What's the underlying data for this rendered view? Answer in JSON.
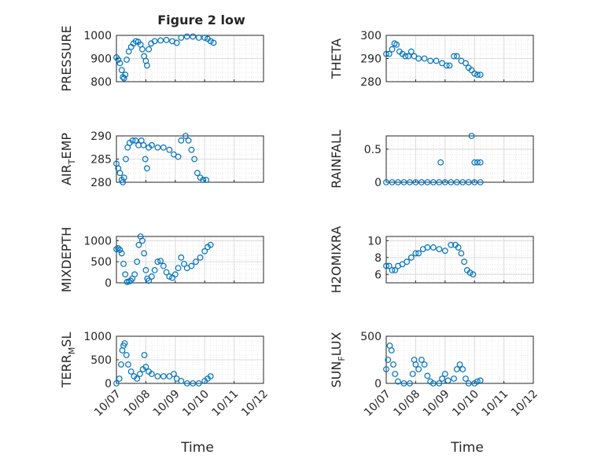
{
  "title": "Figure 2 low",
  "xlabel": "Time",
  "marker_color": "#0072bd",
  "chart_data": [
    {
      "type": "scatter",
      "ylabel": "PRESSURE",
      "ylim": [
        800,
        1000
      ],
      "yticks": [
        "800",
        "900",
        "1000"
      ],
      "xlim": [
        0,
        5
      ],
      "xticks": [
        "10/07",
        "10/08",
        "10/09",
        "10/10",
        "10/11",
        "10/12"
      ],
      "grid": true,
      "points": [
        [
          0.0,
          905
        ],
        [
          0.06,
          895
        ],
        [
          0.12,
          880
        ],
        [
          0.18,
          850
        ],
        [
          0.22,
          820
        ],
        [
          0.26,
          815
        ],
        [
          0.3,
          830
        ],
        [
          0.35,
          895
        ],
        [
          0.42,
          930
        ],
        [
          0.5,
          950
        ],
        [
          0.58,
          965
        ],
        [
          0.66,
          975
        ],
        [
          0.74,
          972
        ],
        [
          0.82,
          960
        ],
        [
          0.88,
          940
        ],
        [
          0.94,
          910
        ],
        [
          1.0,
          890
        ],
        [
          1.04,
          870
        ],
        [
          1.1,
          940
        ],
        [
          1.18,
          965
        ],
        [
          1.3,
          975
        ],
        [
          1.5,
          978
        ],
        [
          1.7,
          980
        ],
        [
          1.9,
          975
        ],
        [
          2.05,
          968
        ],
        [
          2.2,
          990
        ],
        [
          2.4,
          995
        ],
        [
          2.6,
          995
        ],
        [
          2.8,
          990
        ],
        [
          3.0,
          990
        ],
        [
          3.1,
          985
        ],
        [
          3.2,
          975
        ],
        [
          3.3,
          968
        ]
      ]
    },
    {
      "type": "scatter",
      "ylabel": "THETA",
      "ylim": [
        280,
        300
      ],
      "yticks": [
        "280",
        "290",
        "300"
      ],
      "xlim": [
        0,
        5
      ],
      "xticks": [
        "10/07",
        "10/08",
        "10/09",
        "10/10",
        "10/11",
        "10/12"
      ],
      "grid": true,
      "points": [
        [
          0.0,
          292
        ],
        [
          0.1,
          292
        ],
        [
          0.2,
          294
        ],
        [
          0.28,
          296.5
        ],
        [
          0.35,
          296
        ],
        [
          0.45,
          293
        ],
        [
          0.55,
          292
        ],
        [
          0.65,
          291
        ],
        [
          0.75,
          291
        ],
        [
          0.85,
          293
        ],
        [
          0.95,
          291
        ],
        [
          1.1,
          290
        ],
        [
          1.3,
          290
        ],
        [
          1.5,
          289
        ],
        [
          1.7,
          289
        ],
        [
          1.9,
          288
        ],
        [
          2.05,
          287
        ],
        [
          2.15,
          287
        ],
        [
          2.3,
          291
        ],
        [
          2.4,
          291
        ],
        [
          2.55,
          289
        ],
        [
          2.7,
          288
        ],
        [
          2.8,
          286
        ],
        [
          2.9,
          285
        ],
        [
          3.0,
          283.5
        ],
        [
          3.1,
          283
        ],
        [
          3.2,
          283
        ]
      ]
    },
    {
      "type": "scatter",
      "ylabel": "AIR",
      "ylabel_sub": "T",
      "ylabel_rest": "EMP",
      "ylim": [
        280,
        290
      ],
      "yticks": [
        "280",
        "285",
        "290"
      ],
      "xlim": [
        0,
        5
      ],
      "xticks": [
        "10/07",
        "10/08",
        "10/09",
        "10/10",
        "10/11",
        "10/12"
      ],
      "grid": true,
      "points": [
        [
          0.0,
          284
        ],
        [
          0.06,
          283
        ],
        [
          0.12,
          282
        ],
        [
          0.18,
          280.5
        ],
        [
          0.22,
          280
        ],
        [
          0.26,
          281
        ],
        [
          0.32,
          285
        ],
        [
          0.38,
          287.5
        ],
        [
          0.45,
          288.5
        ],
        [
          0.55,
          289
        ],
        [
          0.65,
          289
        ],
        [
          0.75,
          288
        ],
        [
          0.85,
          289
        ],
        [
          0.92,
          288
        ],
        [
          0.98,
          285
        ],
        [
          1.04,
          283
        ],
        [
          1.1,
          287.5
        ],
        [
          1.2,
          288
        ],
        [
          1.4,
          287.5
        ],
        [
          1.6,
          287.5
        ],
        [
          1.8,
          287
        ],
        [
          1.95,
          286
        ],
        [
          2.1,
          285.5
        ],
        [
          2.2,
          289
        ],
        [
          2.35,
          290
        ],
        [
          2.45,
          289
        ],
        [
          2.55,
          287
        ],
        [
          2.65,
          285
        ],
        [
          2.75,
          282
        ],
        [
          2.85,
          281
        ],
        [
          2.95,
          280.5
        ],
        [
          3.05,
          280.5
        ]
      ]
    },
    {
      "type": "scatter",
      "ylabel": "RAINFALL",
      "ylim": [
        0,
        0.7
      ],
      "yticks": [
        "0",
        "0.5"
      ],
      "xlim": [
        0,
        5
      ],
      "xticks": [
        "10/07",
        "10/08",
        "10/09",
        "10/10",
        "10/11",
        "10/12"
      ],
      "grid": true,
      "points": [
        [
          0.0,
          0
        ],
        [
          0.2,
          0
        ],
        [
          0.4,
          0
        ],
        [
          0.6,
          0
        ],
        [
          0.8,
          0
        ],
        [
          1.0,
          0
        ],
        [
          1.2,
          0
        ],
        [
          1.4,
          0
        ],
        [
          1.6,
          0
        ],
        [
          1.8,
          0
        ],
        [
          2.0,
          0
        ],
        [
          2.2,
          0
        ],
        [
          2.4,
          0
        ],
        [
          2.6,
          0
        ],
        [
          2.8,
          0
        ],
        [
          3.0,
          0
        ],
        [
          3.2,
          0
        ],
        [
          1.85,
          0.3
        ],
        [
          2.9,
          0.7
        ],
        [
          3.0,
          0.3
        ],
        [
          3.1,
          0.3
        ],
        [
          3.2,
          0.3
        ]
      ]
    },
    {
      "type": "scatter",
      "ylabel": "MIXDEPTH",
      "ylim": [
        0,
        1100
      ],
      "yticks": [
        "0",
        "500",
        "1000"
      ],
      "xlim": [
        0,
        5
      ],
      "xticks": [
        "10/07",
        "10/08",
        "10/09",
        "10/10",
        "10/11",
        "10/12"
      ],
      "grid": true,
      "points": [
        [
          0.0,
          800
        ],
        [
          0.06,
          820
        ],
        [
          0.12,
          780
        ],
        [
          0.18,
          700
        ],
        [
          0.24,
          450
        ],
        [
          0.3,
          200
        ],
        [
          0.36,
          20
        ],
        [
          0.42,
          30
        ],
        [
          0.48,
          50
        ],
        [
          0.54,
          100
        ],
        [
          0.62,
          200
        ],
        [
          0.7,
          500
        ],
        [
          0.76,
          900
        ],
        [
          0.82,
          1100
        ],
        [
          0.88,
          1000
        ],
        [
          0.94,
          700
        ],
        [
          1.0,
          300
        ],
        [
          1.05,
          100
        ],
        [
          1.1,
          50
        ],
        [
          1.2,
          150
        ],
        [
          1.3,
          300
        ],
        [
          1.4,
          500
        ],
        [
          1.5,
          520
        ],
        [
          1.6,
          400
        ],
        [
          1.7,
          250
        ],
        [
          1.8,
          150
        ],
        [
          1.9,
          120
        ],
        [
          2.0,
          200
        ],
        [
          2.1,
          350
        ],
        [
          2.2,
          600
        ],
        [
          2.3,
          450
        ],
        [
          2.4,
          350
        ],
        [
          2.55,
          400
        ],
        [
          2.7,
          500
        ],
        [
          2.85,
          600
        ],
        [
          3.0,
          750
        ],
        [
          3.1,
          850
        ],
        [
          3.2,
          900
        ]
      ]
    },
    {
      "type": "scatter",
      "ylabel": "H2OMIXRA",
      "ylim": [
        5,
        10.5
      ],
      "yticks": [
        "6",
        "8",
        "10"
      ],
      "xlim": [
        0,
        5
      ],
      "xticks": [
        "10/07",
        "10/08",
        "10/09",
        "10/10",
        "10/11",
        "10/12"
      ],
      "grid": true,
      "points": [
        [
          0.0,
          7
        ],
        [
          0.1,
          7
        ],
        [
          0.2,
          6.5
        ],
        [
          0.3,
          6.5
        ],
        [
          0.4,
          7
        ],
        [
          0.55,
          7.2
        ],
        [
          0.7,
          7.5
        ],
        [
          0.85,
          8
        ],
        [
          1.0,
          8.5
        ],
        [
          1.1,
          8.5
        ],
        [
          1.25,
          9
        ],
        [
          1.4,
          9.2
        ],
        [
          1.6,
          9.2
        ],
        [
          1.8,
          9
        ],
        [
          2.0,
          8.8
        ],
        [
          2.2,
          9.5
        ],
        [
          2.35,
          9.5
        ],
        [
          2.45,
          9.2
        ],
        [
          2.55,
          8.5
        ],
        [
          2.65,
          7.5
        ],
        [
          2.75,
          6.5
        ],
        [
          2.85,
          6.2
        ],
        [
          2.95,
          6
        ]
      ]
    },
    {
      "type": "scatter",
      "ylabel": "TERR",
      "ylabel_sub": "M",
      "ylabel_rest": "SL",
      "ylim": [
        0,
        1000
      ],
      "yticks": [
        "0",
        "500",
        "1000"
      ],
      "xlim": [
        0,
        5
      ],
      "xticks": [
        "10/07",
        "10/08",
        "10/09",
        "10/10",
        "10/11",
        "10/12"
      ],
      "grid": true,
      "points": [
        [
          0.0,
          0
        ],
        [
          0.1,
          100
        ],
        [
          0.16,
          400
        ],
        [
          0.2,
          700
        ],
        [
          0.24,
          800
        ],
        [
          0.28,
          850
        ],
        [
          0.34,
          600
        ],
        [
          0.4,
          400
        ],
        [
          0.5,
          250
        ],
        [
          0.6,
          150
        ],
        [
          0.7,
          100
        ],
        [
          0.8,
          200
        ],
        [
          0.9,
          300
        ],
        [
          0.95,
          600
        ],
        [
          1.0,
          350
        ],
        [
          1.1,
          250
        ],
        [
          1.2,
          200
        ],
        [
          1.4,
          150
        ],
        [
          1.6,
          150
        ],
        [
          1.8,
          150
        ],
        [
          1.95,
          200
        ],
        [
          2.05,
          100
        ],
        [
          2.2,
          50
        ],
        [
          2.4,
          0
        ],
        [
          2.6,
          0
        ],
        [
          2.8,
          0
        ],
        [
          3.0,
          50
        ],
        [
          3.1,
          100
        ],
        [
          3.2,
          150
        ]
      ]
    },
    {
      "type": "scatter",
      "ylabel": "SUN",
      "ylabel_sub": "F",
      "ylabel_rest": "LUX",
      "ylim": [
        0,
        500
      ],
      "yticks": [
        "0",
        "500"
      ],
      "xlim": [
        0,
        5
      ],
      "xticks": [
        "10/07",
        "10/08",
        "10/09",
        "10/10",
        "10/11",
        "10/12"
      ],
      "grid": true,
      "points": [
        [
          0.0,
          150
        ],
        [
          0.06,
          250
        ],
        [
          0.12,
          400
        ],
        [
          0.18,
          350
        ],
        [
          0.24,
          200
        ],
        [
          0.3,
          100
        ],
        [
          0.4,
          20
        ],
        [
          0.6,
          0
        ],
        [
          0.8,
          0
        ],
        [
          0.9,
          100
        ],
        [
          0.95,
          250
        ],
        [
          1.0,
          200
        ],
        [
          1.1,
          150
        ],
        [
          1.2,
          250
        ],
        [
          1.3,
          200
        ],
        [
          1.4,
          80
        ],
        [
          1.5,
          20
        ],
        [
          1.6,
          0
        ],
        [
          1.8,
          0
        ],
        [
          1.9,
          50
        ],
        [
          2.0,
          100
        ],
        [
          2.1,
          30
        ],
        [
          2.3,
          50
        ],
        [
          2.4,
          150
        ],
        [
          2.5,
          200
        ],
        [
          2.6,
          150
        ],
        [
          2.7,
          50
        ],
        [
          2.8,
          0
        ],
        [
          3.0,
          0
        ],
        [
          3.1,
          20
        ],
        [
          3.2,
          30
        ]
      ]
    }
  ]
}
